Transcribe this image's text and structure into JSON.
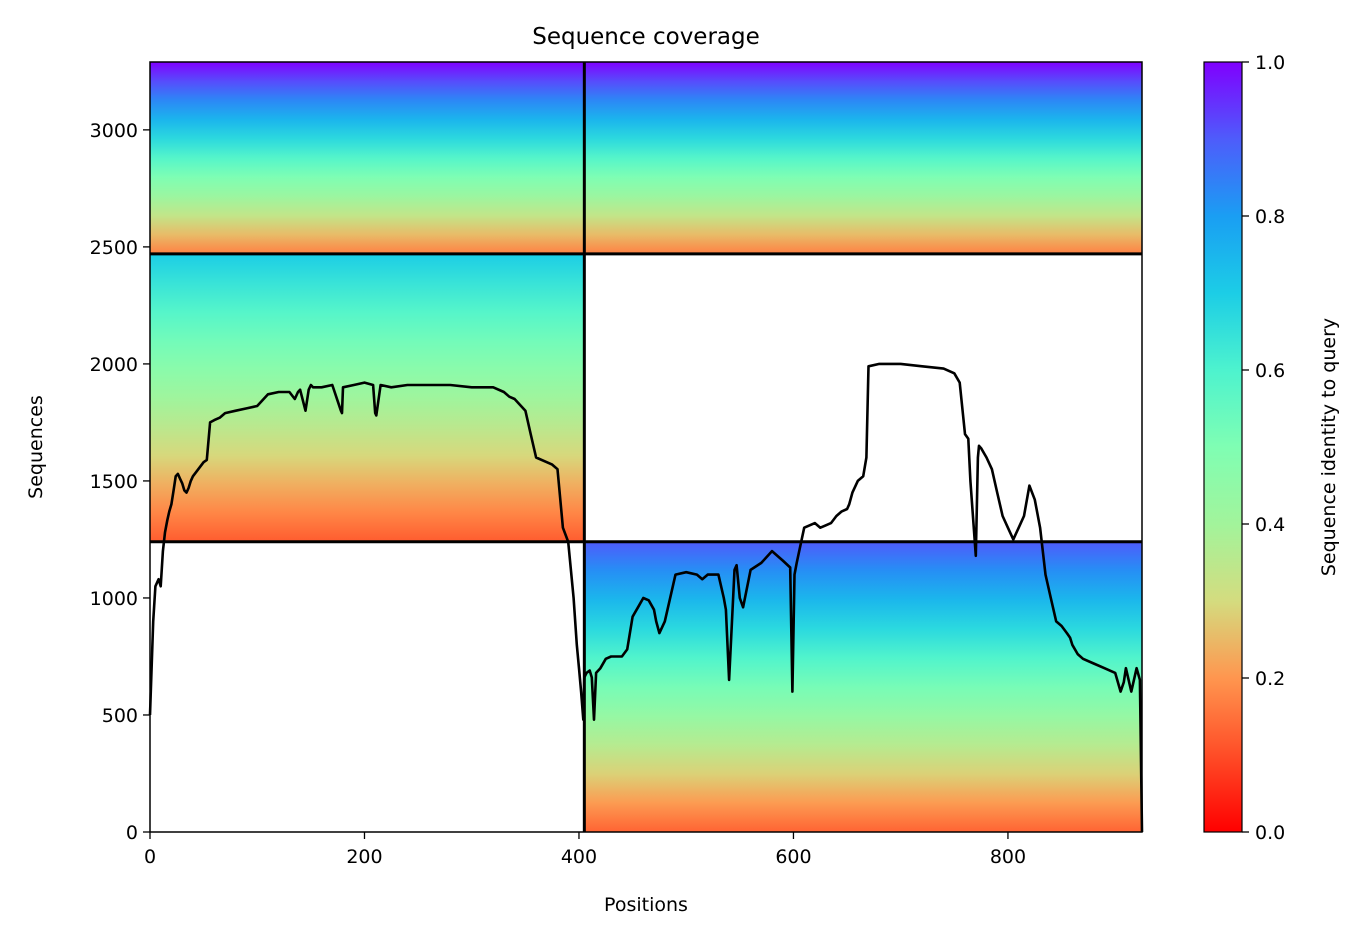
{
  "chart_data": {
    "type": "heatmap",
    "title": "Sequence coverage",
    "xlabel": "Positions",
    "ylabel": "Sequences",
    "xlim": [
      0,
      925
    ],
    "ylim": [
      0,
      3290
    ],
    "x_ticks": [
      "0",
      "200",
      "400",
      "600",
      "800"
    ],
    "y_ticks": [
      "0",
      "500",
      "1000",
      "1500",
      "2000",
      "2500",
      "3000"
    ],
    "colorbar": {
      "label": "Sequence identity to query",
      "colormap": "rainbow",
      "range": [
        0.0,
        1.0
      ],
      "ticks": [
        "0.0",
        "0.2",
        "0.4",
        "0.6",
        "0.8",
        "1.0"
      ]
    },
    "blocks": [
      {
        "x_range": [
          0,
          405
        ],
        "y_range": [
          2470,
          3290
        ],
        "identity_range": [
          0.17,
          1.0
        ]
      },
      {
        "x_range": [
          405,
          925
        ],
        "y_range": [
          2470,
          3290
        ],
        "identity_range": [
          0.17,
          1.0
        ]
      },
      {
        "x_range": [
          0,
          405
        ],
        "y_range": [
          1240,
          2470
        ],
        "identity_range": [
          0.12,
          0.7
        ]
      },
      {
        "x_range": [
          405,
          925
        ],
        "y_range": [
          0,
          1240
        ],
        "identity_range": [
          0.13,
          0.9
        ]
      }
    ],
    "block_dividers": {
      "x": [
        405
      ],
      "y": [
        1240,
        2470
      ]
    },
    "coverage_line": {
      "x": [
        0,
        3,
        5,
        8,
        10,
        12,
        14,
        16,
        18,
        20,
        22,
        24,
        26,
        28,
        30,
        32,
        34,
        36,
        38,
        40,
        45,
        50,
        53,
        56,
        60,
        65,
        70,
        80,
        90,
        100,
        110,
        120,
        130,
        135,
        138,
        140,
        145,
        148,
        150,
        152,
        160,
        170,
        178,
        179,
        180,
        190,
        200,
        208,
        210,
        211,
        215,
        225,
        240,
        260,
        280,
        300,
        320,
        330,
        335,
        340,
        350,
        355,
        360,
        370,
        375,
        380,
        385,
        390,
        395,
        398,
        400,
        402,
        404,
        405,
        407,
        410,
        412,
        414,
        416,
        420,
        425,
        430,
        440,
        445,
        450,
        455,
        460,
        465,
        470,
        472,
        475,
        480,
        490,
        500,
        510,
        515,
        520,
        530,
        535,
        537,
        540,
        545,
        547,
        550,
        553,
        560,
        570,
        580,
        590,
        597,
        599,
        601,
        603,
        610,
        620,
        625,
        630,
        635,
        640,
        645,
        650,
        652,
        655,
        660,
        665,
        668,
        670,
        680,
        700,
        720,
        740,
        750,
        755,
        760,
        763,
        765,
        770,
        772,
        773,
        775,
        780,
        785,
        790,
        795,
        800,
        805,
        810,
        815,
        820,
        825,
        830,
        835,
        840,
        845,
        850,
        855,
        858,
        860,
        865,
        870,
        880,
        890,
        900,
        905,
        908,
        910,
        915,
        920,
        923,
        925
      ],
      "y": [
        500,
        900,
        1050,
        1080,
        1050,
        1200,
        1280,
        1330,
        1370,
        1400,
        1460,
        1520,
        1530,
        1510,
        1490,
        1460,
        1450,
        1470,
        1500,
        1520,
        1550,
        1580,
        1590,
        1750,
        1760,
        1770,
        1790,
        1800,
        1810,
        1820,
        1870,
        1880,
        1880,
        1850,
        1880,
        1890,
        1800,
        1890,
        1910,
        1900,
        1900,
        1910,
        1800,
        1790,
        1900,
        1910,
        1920,
        1910,
        1790,
        1780,
        1910,
        1900,
        1910,
        1910,
        1910,
        1900,
        1900,
        1880,
        1860,
        1850,
        1800,
        1700,
        1600,
        1580,
        1570,
        1550,
        1300,
        1240,
        1000,
        800,
        700,
        600,
        480,
        660,
        680,
        690,
        660,
        480,
        680,
        700,
        740,
        750,
        750,
        780,
        920,
        960,
        1000,
        990,
        950,
        900,
        850,
        900,
        1100,
        1110,
        1100,
        1080,
        1100,
        1100,
        1000,
        950,
        650,
        1120,
        1140,
        1000,
        960,
        1120,
        1150,
        1200,
        1160,
        1130,
        600,
        1100,
        1150,
        1300,
        1320,
        1300,
        1310,
        1320,
        1350,
        1370,
        1380,
        1400,
        1450,
        1500,
        1520,
        1600,
        1990,
        2000,
        2000,
        1990,
        1980,
        1960,
        1920,
        1700,
        1680,
        1500,
        1180,
        1600,
        1650,
        1640,
        1600,
        1550,
        1450,
        1350,
        1300,
        1250,
        1300,
        1350,
        1480,
        1420,
        1300,
        1100,
        1000,
        900,
        880,
        850,
        830,
        800,
        760,
        740,
        720,
        700,
        680,
        600,
        640,
        700,
        600,
        700,
        650,
        0
      ]
    }
  }
}
